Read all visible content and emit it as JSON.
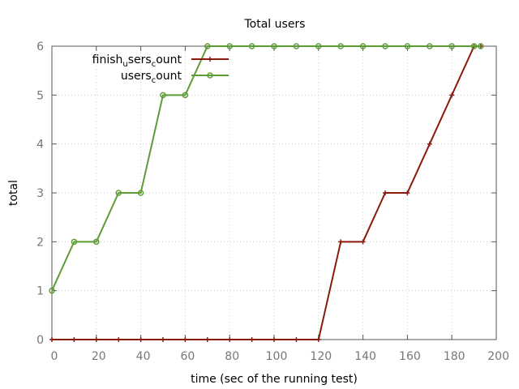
{
  "chart_data": {
    "type": "line",
    "title": "Total users",
    "xlabel": "time (sec of the running test)",
    "ylabel": "total",
    "xlim": [
      0,
      200
    ],
    "ylim": [
      0,
      6
    ],
    "xticks": [
      0,
      20,
      40,
      60,
      80,
      100,
      120,
      140,
      160,
      180,
      200
    ],
    "yticks": [
      0,
      1,
      2,
      3,
      4,
      5,
      6
    ],
    "grid": true,
    "legend_position": "top-left",
    "series": [
      {
        "legend_main": "finish",
        "legend_parts": [
          [
            "u",
            "sers"
          ],
          [
            "c",
            "ount"
          ]
        ],
        "name": "finish_users_count",
        "color": "#8b1a0e",
        "marker": "plus",
        "x": [
          0,
          10,
          20,
          30,
          40,
          50,
          60,
          70,
          80,
          90,
          100,
          110,
          120,
          130,
          140,
          150,
          160,
          170,
          180,
          190,
          193
        ],
        "y": [
          0,
          0,
          0,
          0,
          0,
          0,
          0,
          0,
          0,
          0,
          0,
          0,
          0,
          2,
          2,
          3,
          3,
          4,
          5,
          6,
          6
        ]
      },
      {
        "legend_main": "users",
        "legend_parts": [
          [
            "c",
            "ount"
          ]
        ],
        "name": "users_count",
        "color": "#5e9c36",
        "marker": "circle",
        "x": [
          0,
          10,
          20,
          30,
          40,
          50,
          60,
          70,
          80,
          90,
          100,
          110,
          120,
          130,
          140,
          150,
          160,
          170,
          180,
          190,
          193
        ],
        "y": [
          1,
          2,
          2,
          3,
          3,
          5,
          5,
          6,
          6,
          6,
          6,
          6,
          6,
          6,
          6,
          6,
          6,
          6,
          6,
          6,
          6
        ]
      }
    ]
  }
}
